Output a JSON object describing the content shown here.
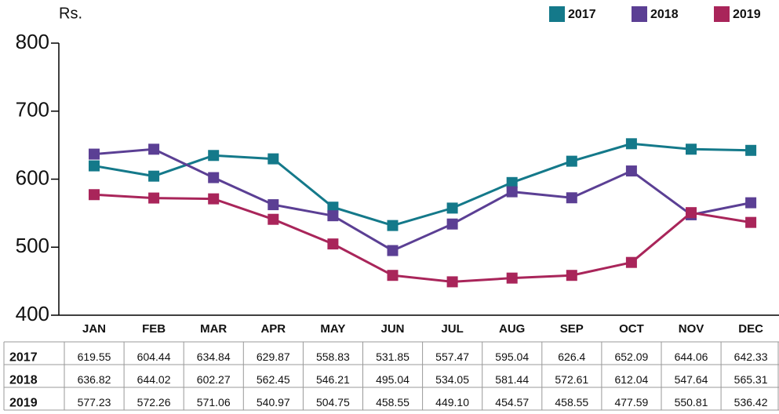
{
  "chart_data": {
    "type": "line",
    "y_unit": "Rs.",
    "categories": [
      "JAN",
      "FEB",
      "MAR",
      "APR",
      "MAY",
      "JUN",
      "JUL",
      "AUG",
      "SEP",
      "OCT",
      "NOV",
      "DEC"
    ],
    "series": [
      {
        "name": "2017",
        "color": "#14798a",
        "values": [
          619.55,
          604.44,
          634.84,
          629.87,
          558.83,
          531.85,
          557.47,
          595.04,
          626.4,
          652.09,
          644.06,
          642.33
        ],
        "value_labels": [
          "619.55",
          "604.44",
          "634.84",
          "629.87",
          "558.83",
          "531.85",
          "557.47",
          "595.04",
          "626.4",
          "652.09",
          "644.06",
          "642.33"
        ]
      },
      {
        "name": "2018",
        "color": "#5b3f94",
        "values": [
          636.82,
          644.02,
          602.27,
          562.45,
          546.21,
          495.04,
          534.05,
          581.44,
          572.61,
          612.04,
          547.64,
          565.31
        ],
        "value_labels": [
          "636.82",
          "644.02",
          "602.27",
          "562.45",
          "546.21",
          "495.04",
          "534.05",
          "581.44",
          "572.61",
          "612.04",
          "547.64",
          "565.31"
        ]
      },
      {
        "name": "2019",
        "color": "#a9255a",
        "values": [
          577.23,
          572.26,
          571.06,
          540.97,
          504.75,
          458.55,
          449.1,
          454.57,
          458.55,
          477.59,
          550.81,
          536.42
        ],
        "value_labels": [
          "577.23",
          "572.26",
          "571.06",
          "540.97",
          "504.75",
          "458.55",
          "449.10",
          "454.57",
          "458.55",
          "477.59",
          "550.81",
          "536.42"
        ]
      }
    ],
    "ylim": [
      400,
      800
    ],
    "yticks": [
      400,
      500,
      600,
      700,
      800
    ],
    "legend": "top-right"
  }
}
